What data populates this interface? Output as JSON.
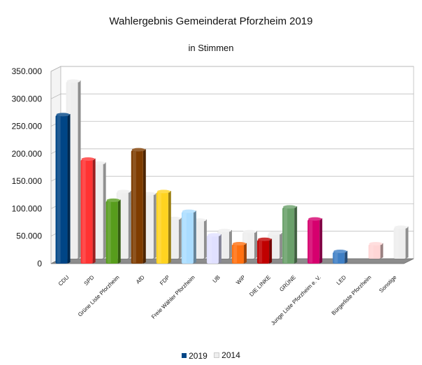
{
  "chart_data": {
    "type": "bar",
    "title": "Wahlergebnis Gemeinderat Pforzheim 2019",
    "subtitle": "in Stimmen",
    "xlabel": "",
    "ylabel": "",
    "ylim": [
      0,
      350000
    ],
    "yticks": [
      "0",
      "50.000",
      "100.000",
      "150.000",
      "200.000",
      "250.000",
      "300.000",
      "350.000"
    ],
    "categories": [
      "CDU",
      "SPD",
      "Grüne Liste Pforzheim",
      "AfD",
      "FDP",
      "Freie Wähler Pforzheim",
      "UB",
      "WiP",
      "DIE LINKE",
      "GRÜNE",
      "Junge Liste Pforzheim e. V.",
      "LED",
      "Bürgerliste Pforzheim",
      "Sonstige"
    ],
    "series": [
      {
        "name": "2019",
        "values": [
          270000,
          189000,
          114000,
          206000,
          130000,
          94000,
          51000,
          35000,
          43000,
          102000,
          80000,
          21000,
          0,
          0
        ]
      },
      {
        "name": "2014",
        "values": [
          322000,
          173000,
          121000,
          117000,
          72000,
          69000,
          50000,
          48000,
          45000,
          0,
          0,
          0,
          26000,
          56000
        ]
      }
    ],
    "series_colors": [
      "#004586",
      "#eeeeee"
    ],
    "bar_colors_2019": [
      "#004586",
      "#ff3333",
      "#579d1c",
      "#7e3c00",
      "#ffd320",
      "#aadcff",
      "#e0e0ff",
      "#ff7010",
      "#c00000",
      "#6aa06a",
      "#d6006e",
      "#3f7fc5",
      "#ffd6d6",
      "#eeeeee"
    ],
    "bar_colors_2014": [
      "#eeeeee",
      "#eeeeee",
      "#eeeeee",
      "#eeeeee",
      "#eeeeee",
      "#eeeeee",
      "#eeeeee",
      "#eeeeee",
      "#eeeeee",
      "#eeeeee",
      "#eeeeee",
      "#eeeeee",
      "#ffd6d6",
      "#eeeeee"
    ],
    "legend_position": "bottom",
    "grid": true,
    "three_d": true
  }
}
